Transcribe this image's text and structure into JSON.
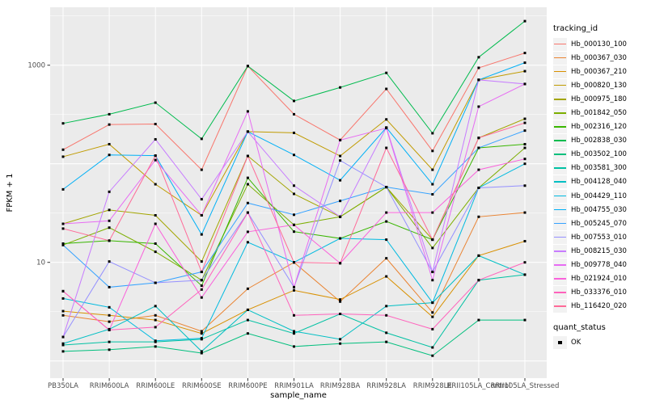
{
  "figure": {
    "background": "#FFFFFF",
    "panel_background": "#EBEBEB",
    "gridline_color": "#FFFFFF",
    "tick_label_color": "#4D4D4D",
    "axis_title_color": "#000000",
    "point_color": "#000000"
  },
  "chart_data": {
    "type": "line",
    "title": "",
    "xlabel": "sample_name",
    "ylabel": "FPKM + 1",
    "y_scale": "log10",
    "y_tick_labels": [
      "1000",
      "10"
    ],
    "y_tick_values": [
      1000,
      10
    ],
    "y_major_gridlines": [
      1,
      10,
      100,
      1000
    ],
    "y_minor_gridlines": [
      3.162,
      31.62,
      316.2,
      3162
    ],
    "ylim": [
      0.9,
      3800
    ],
    "legend_position": "right",
    "grid": true,
    "point_shape": "square",
    "categories": [
      "PB350LA",
      "RRIM600LA",
      "RRIM600LE",
      "RRIM600SE",
      "RRIM600PE",
      "RRIM901LA",
      "RRIM928BA",
      "RRIM928LA",
      "RRIM928LE",
      "RRII105LA_Control",
      "RRII105LA_Stressed"
    ],
    "series": [
      {
        "name": "Hb_000130_100",
        "color": "#F8766D",
        "values": [
          139,
          250,
          253,
          87,
          980,
          318,
          174,
          575,
          135,
          940,
          1330
        ]
      },
      {
        "name": "Hb_000367_030",
        "color": "#EA8331",
        "values": [
          2.9,
          2.5,
          2.9,
          2.0,
          5.4,
          10,
          4.0,
          11,
          3.1,
          29,
          32
        ]
      },
      {
        "name": "Hb_000367_210",
        "color": "#D89000",
        "values": [
          3.2,
          2.9,
          2.6,
          1.9,
          3.3,
          5.2,
          4.2,
          7.2,
          2.8,
          11.7,
          16.4
        ]
      },
      {
        "name": "Hb_000820_130",
        "color": "#C09B00",
        "values": [
          118,
          158,
          62,
          30,
          212,
          206,
          120,
          282,
          87,
          710,
          870
        ]
      },
      {
        "name": "Hb_000975_180",
        "color": "#A3A500",
        "values": [
          24.6,
          34,
          30,
          10.2,
          120,
          49.5,
          29,
          58,
          17,
          183,
          286
        ]
      },
      {
        "name": "Hb_001842_050",
        "color": "#7CAE00",
        "values": [
          15,
          22.5,
          12.8,
          6.6,
          62,
          24,
          29,
          58,
          14,
          57,
          145
        ]
      },
      {
        "name": "Hb_002316_120",
        "color": "#39B600",
        "values": [
          15.5,
          16.6,
          15.5,
          5.8,
          72,
          20.5,
          17.5,
          26,
          17,
          145,
          158
        ]
      },
      {
        "name": "Hb_002838_030",
        "color": "#00BB4E",
        "values": [
          257,
          318,
          417,
          179,
          980,
          434,
          595,
          836,
          204,
          1205,
          2800
        ]
      },
      {
        "name": "Hb_003502_100",
        "color": "#00BF7D",
        "values": [
          1.25,
          1.3,
          1.4,
          1.2,
          1.9,
          1.4,
          1.5,
          1.56,
          1.13,
          2.6,
          2.6
        ]
      },
      {
        "name": "Hb_003581_300",
        "color": "#00C1A3",
        "values": [
          1.45,
          1.56,
          1.56,
          1.66,
          2.6,
          1.9,
          3.0,
          1.93,
          1.37,
          6.6,
          7.5
        ]
      },
      {
        "name": "Hb_004128_040",
        "color": "#00BFC4",
        "values": [
          1.5,
          2.1,
          3.6,
          1.25,
          3.3,
          2.0,
          1.66,
          3.6,
          3.9,
          11.7,
          7.5
        ]
      },
      {
        "name": "Hb_004429_110",
        "color": "#00BAE0",
        "values": [
          4.3,
          3.5,
          1.6,
          1.7,
          16,
          10,
          17.5,
          17,
          3.9,
          57,
          100
        ]
      },
      {
        "name": "Hb_004755_030",
        "color": "#00B0F6",
        "values": [
          55,
          123,
          121,
          19.2,
          212,
          123,
          68,
          233,
          62,
          710,
          1060
        ]
      },
      {
        "name": "Hb_005245_070",
        "color": "#35A2FF",
        "values": [
          15,
          5.6,
          6.2,
          8.0,
          40,
          30.4,
          42,
          58,
          49,
          145,
          217
        ]
      },
      {
        "name": "Hb_007553_010",
        "color": "#9590FF",
        "values": [
          1.75,
          10.2,
          6.2,
          6.6,
          32,
          5.6,
          108,
          58,
          8.0,
          57,
          60
        ]
      },
      {
        "name": "Hb_008215_030",
        "color": "#C77CFF",
        "values": [
          1.75,
          52,
          177,
          43.7,
          212,
          60,
          29,
          233,
          8.0,
          710,
          645
        ]
      },
      {
        "name": "Hb_009778_040",
        "color": "#E76BF3",
        "values": [
          24.6,
          26.4,
          109,
          30,
          340,
          5.6,
          174,
          230,
          6.6,
          380,
          645
        ]
      },
      {
        "name": "Hb_021924_010",
        "color": "#FA62DB",
        "values": [
          5.1,
          2.06,
          24.6,
          4.4,
          20.4,
          24,
          9.8,
          32,
          32,
          87,
          112
        ]
      },
      {
        "name": "Hb_033376_010",
        "color": "#FF62BC",
        "values": [
          5.1,
          2.06,
          2.2,
          5.3,
          32,
          2.9,
          3.0,
          2.9,
          2.1,
          6.6,
          10
        ]
      },
      {
        "name": "Hb_116420_020",
        "color": "#FF6A98",
        "values": [
          22,
          16.6,
          121,
          8.0,
          120,
          10,
          9.8,
          145,
          17,
          183,
          260
        ]
      }
    ]
  },
  "legend": {
    "tracking_title": "tracking_id",
    "quant_title": "quant_status",
    "quant_items": [
      {
        "label": "OK"
      }
    ]
  }
}
